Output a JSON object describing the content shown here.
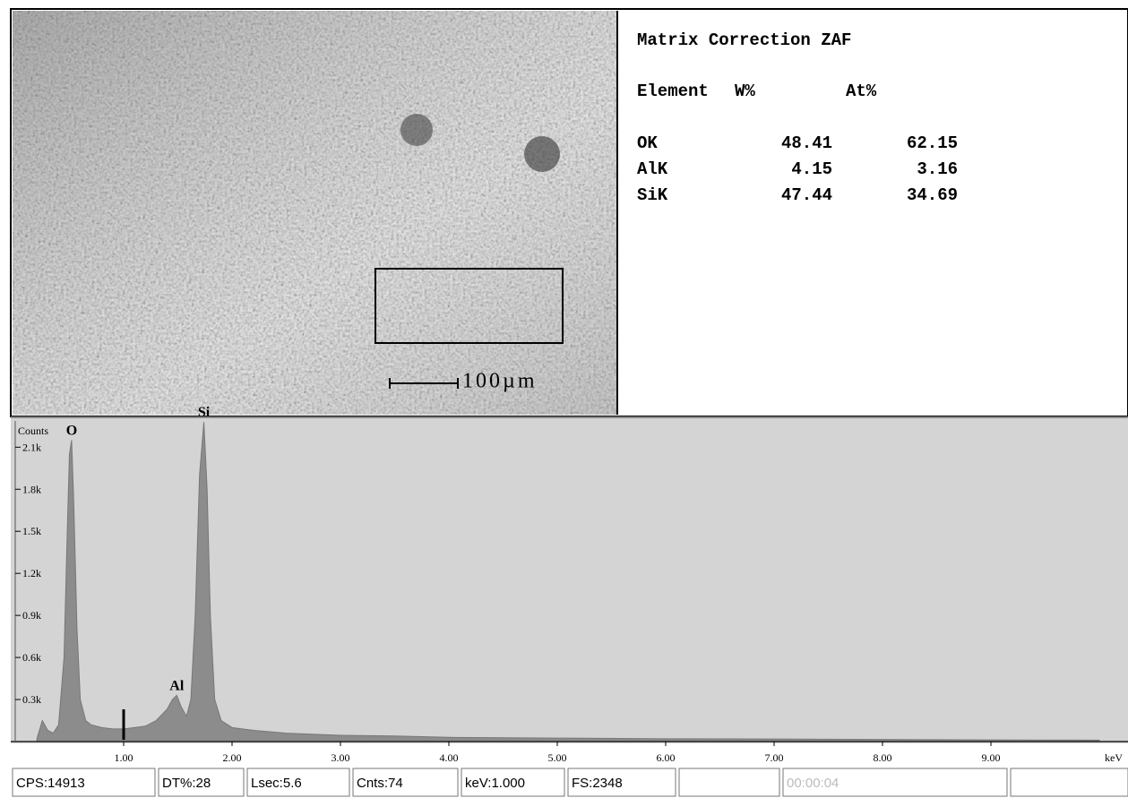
{
  "results": {
    "title": "Matrix Correction ZAF",
    "columns": [
      "Element",
      "W%",
      "At%"
    ],
    "rows": [
      [
        "OK",
        48.41,
        62.15
      ],
      [
        "AlK",
        4.15,
        3.16
      ],
      [
        "SiK",
        47.44,
        34.69
      ]
    ]
  },
  "image": {
    "scale_label": "100µm"
  },
  "chart_data": {
    "type": "area",
    "y_label": "Counts",
    "x_unit": "keV",
    "color": "#8c8c8c",
    "x": [
      0.2,
      0.25,
      0.3,
      0.35,
      0.4,
      0.45,
      0.48,
      0.5,
      0.52,
      0.54,
      0.57,
      0.6,
      0.65,
      0.7,
      0.8,
      0.9,
      1.0,
      1.1,
      1.2,
      1.3,
      1.4,
      1.45,
      1.49,
      1.53,
      1.58,
      1.62,
      1.66,
      1.7,
      1.74,
      1.77,
      1.8,
      1.84,
      1.9,
      2.0,
      2.2,
      2.5,
      3.0,
      3.5,
      4.0,
      5.0,
      6.0,
      7.0,
      8.0,
      9.0,
      10.0
    ],
    "values": [
      20,
      150,
      80,
      60,
      120,
      600,
      1500,
      2050,
      2150,
      1700,
      800,
      300,
      150,
      120,
      100,
      90,
      90,
      100,
      110,
      150,
      230,
      300,
      330,
      250,
      180,
      300,
      900,
      1900,
      2280,
      1800,
      900,
      300,
      150,
      100,
      80,
      60,
      45,
      40,
      30,
      25,
      20,
      18,
      15,
      12,
      10
    ],
    "peaks": [
      {
        "label": "O",
        "x": 0.52
      },
      {
        "label": "Al",
        "x": 1.49
      },
      {
        "label": "Si",
        "x": 1.74
      }
    ],
    "xlim": [
      0,
      10.25
    ],
    "ylim": [
      0,
      2300
    ],
    "xticks": [
      {
        "value": 1,
        "label": "1.00"
      },
      {
        "value": 2,
        "label": "2.00"
      },
      {
        "value": 3,
        "label": "3.00"
      },
      {
        "value": 4,
        "label": "4.00"
      },
      {
        "value": 5,
        "label": "5.00"
      },
      {
        "value": 6,
        "label": "6.00"
      },
      {
        "value": 7,
        "label": "7.00"
      },
      {
        "value": 8,
        "label": "8.00"
      },
      {
        "value": 9,
        "label": "9.00"
      }
    ],
    "yticks": [
      {
        "value": 300,
        "label": "0.3k"
      },
      {
        "value": 600,
        "label": "0.6k"
      },
      {
        "value": 900,
        "label": "0.9k"
      },
      {
        "value": 1200,
        "label": "1.2k"
      },
      {
        "value": 1500,
        "label": "1.5k"
      },
      {
        "value": 1800,
        "label": "1.8k"
      },
      {
        "value": 2100,
        "label": "2.1k"
      }
    ]
  },
  "status": [
    "CPS:14913",
    "DT%:28",
    "Lsec:5.6",
    "Cnts:74",
    "keV:1.000",
    "FS:2348",
    "00:00:04"
  ]
}
